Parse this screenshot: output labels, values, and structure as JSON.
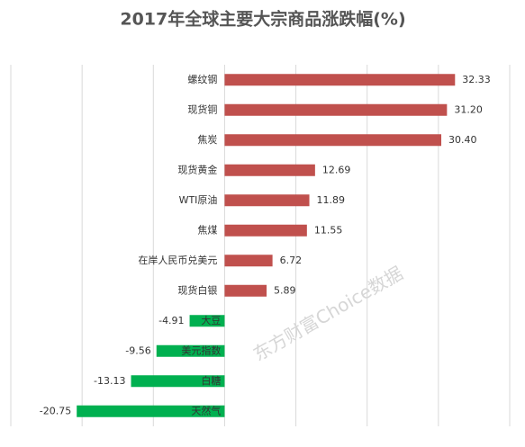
{
  "chart_data": {
    "type": "hbar",
    "title": "2017年全球主要大宗商品涨跌幅(%)",
    "categories": [
      "螺纹钢",
      "现货铜",
      "焦炭",
      "现货黄金",
      "WTI原油",
      "焦煤",
      "在岸人民币兑美元",
      "现货白银",
      "大豆",
      "美元指数",
      "白糖",
      "天然气"
    ],
    "values": [
      32.33,
      31.2,
      30.4,
      12.69,
      11.89,
      11.55,
      6.72,
      5.89,
      -4.91,
      -9.56,
      -13.13,
      -20.75
    ],
    "value_labels": [
      "32.33",
      "31.20",
      "30.40",
      "12.69",
      "11.89",
      "11.55",
      "6.72",
      "5.89",
      "-4.91",
      "-9.56",
      "-13.13",
      "-20.75"
    ],
    "positive_color": "#c0504d",
    "negative_color": "#00b050",
    "xlim": [
      -30,
      40
    ],
    "xticks": [
      -30,
      -20,
      -10,
      0,
      10,
      20,
      30,
      40
    ],
    "grid": true,
    "watermark": "东方财富Choice数据"
  }
}
